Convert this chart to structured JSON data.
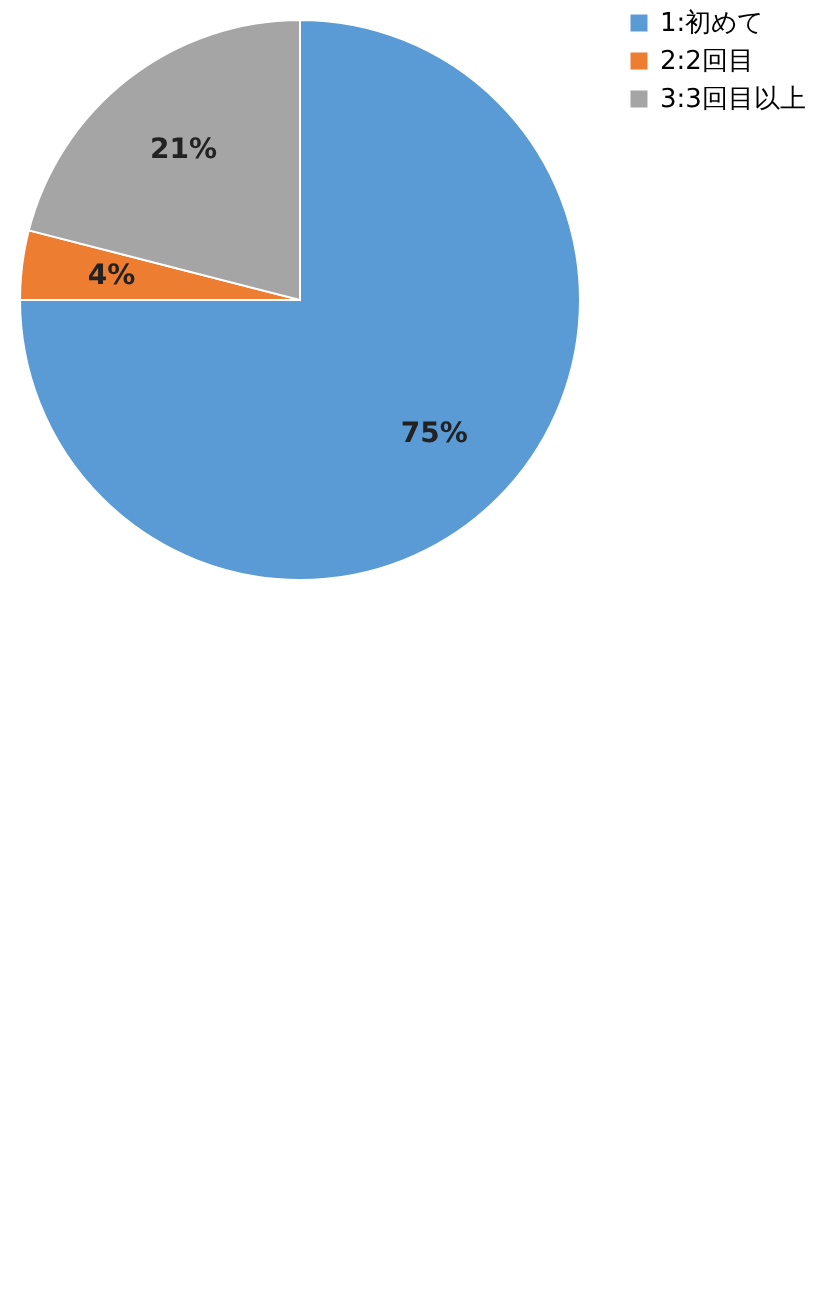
{
  "chart_data": {
    "type": "pie",
    "categories": [
      "1:初めて",
      "2:2回目",
      "3:3回目以上"
    ],
    "values": [
      75,
      4,
      21
    ],
    "colors": [
      "#5b9bd5",
      "#ed7d31",
      "#a5a5a5"
    ],
    "value_labels": [
      "75%",
      "4%",
      "21%"
    ],
    "legend": "right"
  }
}
